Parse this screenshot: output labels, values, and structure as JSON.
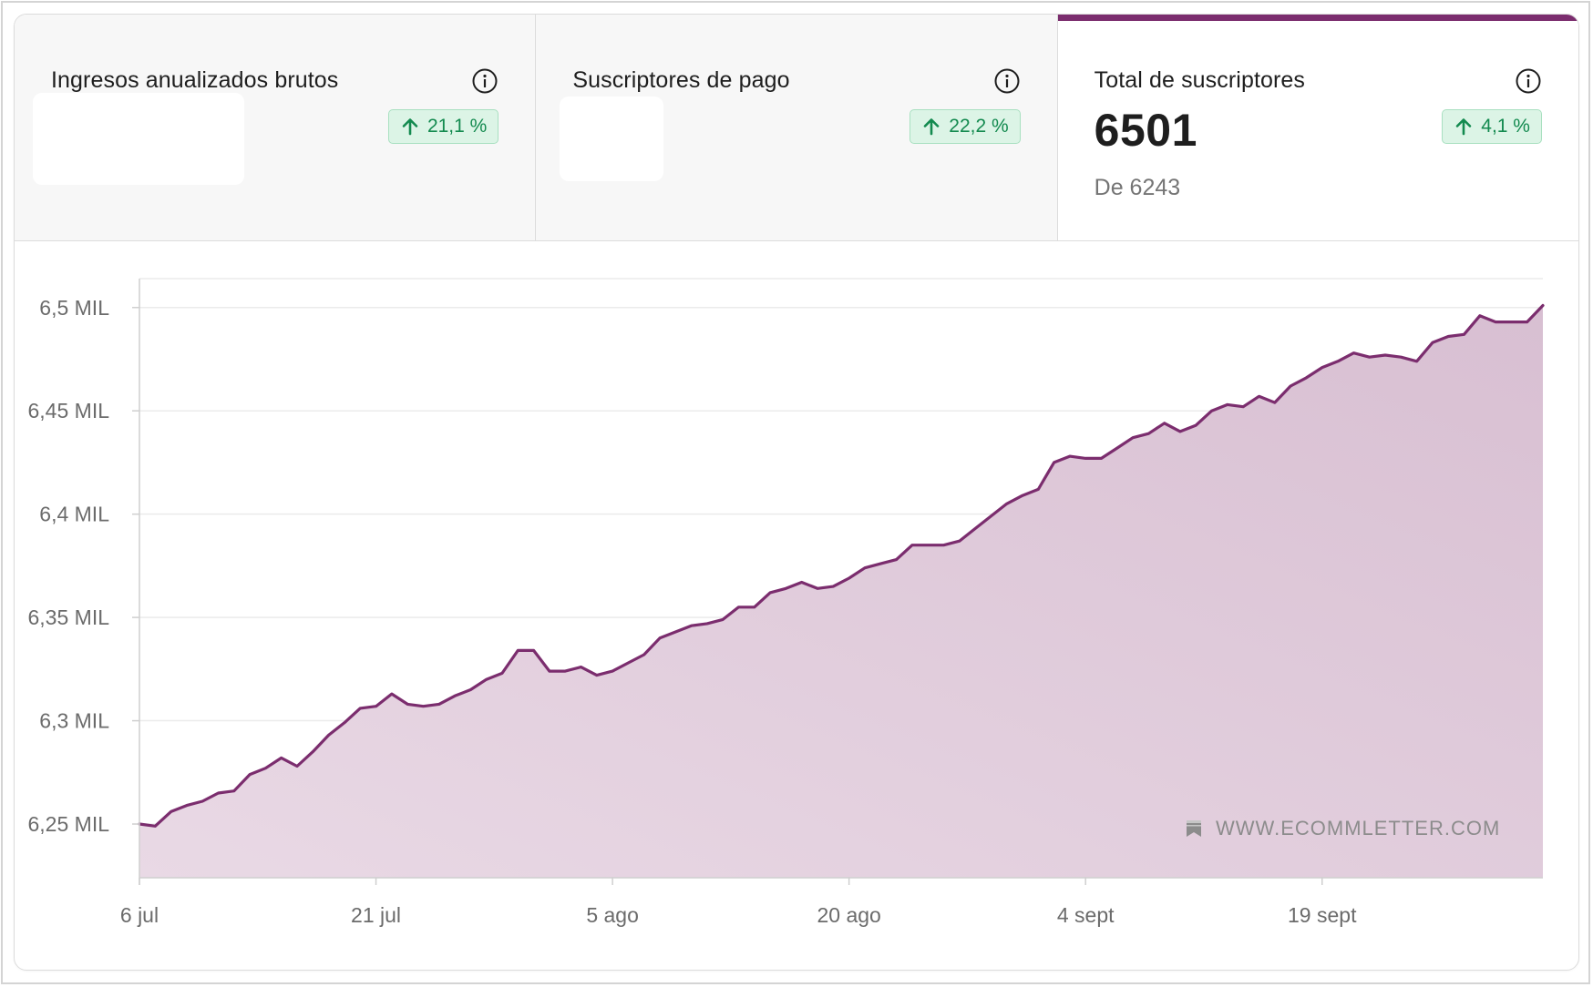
{
  "colors": {
    "accent": "#7b2d6e",
    "area_fill": "#dcc3d6",
    "badge_bg": "#dcf4e6",
    "badge_text": "#138a4f"
  },
  "tabs": [
    {
      "title": "Ingresos anualizados brutos",
      "delta": "21,1 %",
      "delta_direction": "up",
      "icon": "info-icon",
      "active": false
    },
    {
      "title": "Suscriptores de pago",
      "delta": "22,2 %",
      "delta_direction": "up",
      "icon": "info-icon",
      "active": false
    },
    {
      "title": "Total de suscriptores",
      "value": "6501",
      "previous": "De 6243",
      "delta": "4,1 %",
      "delta_direction": "up",
      "icon": "info-icon",
      "active": true
    }
  ],
  "watermark": {
    "text": "WWW.ECOMMLETTER.COM",
    "icon": "bookmark-icon"
  },
  "chart_data": {
    "type": "area",
    "title": "",
    "xlabel": "",
    "ylabel": "",
    "x_ticks": [
      "6 jul",
      "21 jul",
      "5 ago",
      "20 ago",
      "4 sept",
      "19 sept"
    ],
    "x_tick_days": [
      0,
      15,
      30,
      45,
      60,
      75
    ],
    "y_ticks": [
      6250,
      6300,
      6350,
      6400,
      6450,
      6500
    ],
    "y_tick_labels": [
      "6,25 MIL",
      "6,3 MIL",
      "6,35 MIL",
      "6,4 MIL",
      "6,45 MIL",
      "6,5 MIL"
    ],
    "ylim": [
      6224,
      6514
    ],
    "xlim": [
      0,
      89
    ],
    "grid": true,
    "series": [
      {
        "x": [
          0,
          1,
          2,
          3,
          4,
          5,
          6,
          7,
          8,
          9,
          10,
          11,
          12,
          13,
          14,
          15,
          16,
          17,
          18,
          19,
          20,
          21,
          22,
          23,
          24,
          25,
          26,
          27,
          28,
          29,
          30,
          31,
          32,
          33,
          34,
          35,
          36,
          37,
          38,
          39,
          40,
          41,
          42,
          43,
          44,
          45,
          46,
          47,
          48,
          49,
          50,
          51,
          52,
          53,
          54,
          55,
          56,
          57,
          58,
          59,
          60,
          61,
          62,
          63,
          64,
          65,
          66,
          67,
          68,
          69,
          70,
          71,
          72,
          73,
          74,
          75,
          76,
          77,
          78,
          79,
          80,
          81,
          82,
          83,
          84,
          85,
          86,
          87,
          88,
          89
        ],
        "values": [
          6250,
          6249,
          6256,
          6259,
          6261,
          6265,
          6266,
          6274,
          6277,
          6282,
          6278,
          6285,
          6293,
          6299,
          6306,
          6307,
          6313,
          6308,
          6307,
          6308,
          6312,
          6315,
          6320,
          6323,
          6334,
          6334,
          6324,
          6324,
          6326,
          6322,
          6324,
          6328,
          6332,
          6340,
          6343,
          6346,
          6347,
          6349,
          6355,
          6355,
          6362,
          6364,
          6367,
          6364,
          6365,
          6369,
          6374,
          6376,
          6378,
          6385,
          6385,
          6385,
          6387,
          6393,
          6399,
          6405,
          6409,
          6412,
          6425,
          6428,
          6427,
          6427,
          6432,
          6437,
          6439,
          6444,
          6440,
          6443,
          6450,
          6453,
          6452,
          6457,
          6454,
          6462,
          6466,
          6471,
          6474,
          6478,
          6476,
          6477,
          6476,
          6474,
          6483,
          6486,
          6487,
          6496,
          6493,
          6493,
          6493,
          6501
        ]
      }
    ]
  }
}
